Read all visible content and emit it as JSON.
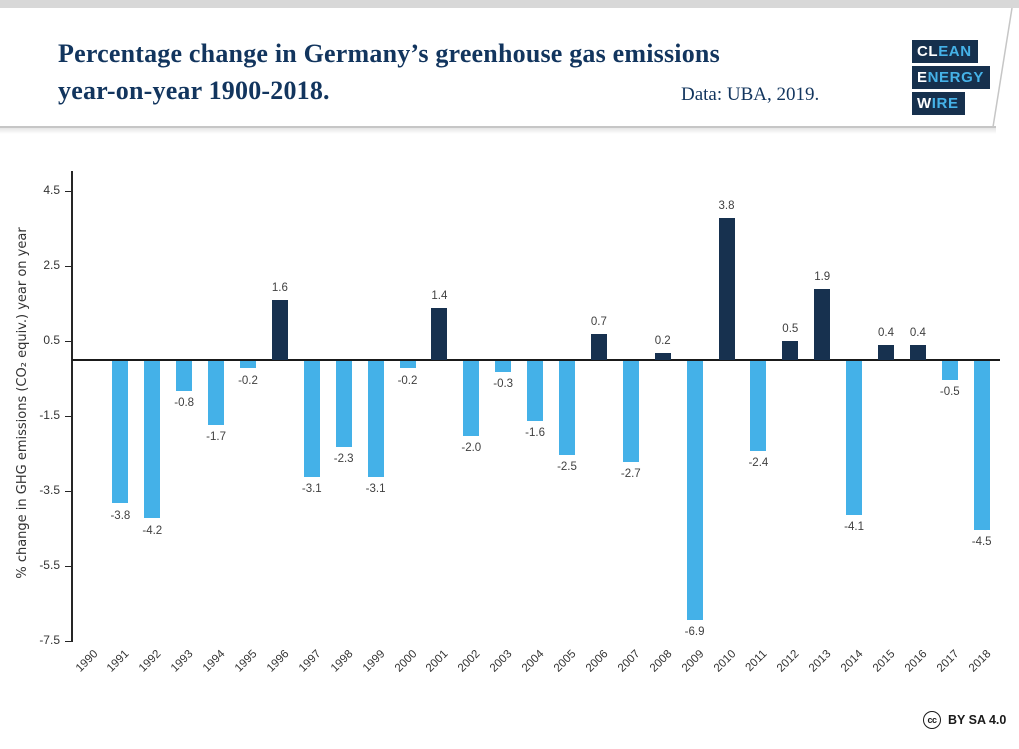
{
  "header": {
    "title_line1": "Percentage change in Germany’s greenhouse gas emissions",
    "title_line2": "year-on-year 1900-2018.",
    "source": "Data: UBA, 2019."
  },
  "logo": {
    "rows": [
      {
        "white": "CL",
        "blue": "EAN"
      },
      {
        "white": "E",
        "blue": "NERGY"
      },
      {
        "white": "W",
        "blue": "IRE"
      }
    ]
  },
  "footer": {
    "cc_icon": "cc",
    "license": "BY SA 4.0"
  },
  "chart_data": {
    "type": "bar",
    "title": "Percentage change in Germany’s greenhouse gas emissions year-on-year 1900-2018.",
    "subtitle": "Data: UBA, 2019.",
    "xlabel": "",
    "ylabel": "% change in GHG emissions (CO₂ equiv.) year on year",
    "categories": [
      "1990",
      "1991",
      "1992",
      "1993",
      "1994",
      "1995",
      "1996",
      "1997",
      "1998",
      "1999",
      "2000",
      "2001",
      "2002",
      "2003",
      "2004",
      "2005",
      "2006",
      "2007",
      "2008",
      "2009",
      "2010",
      "2011",
      "2012",
      "2013",
      "2014",
      "2015",
      "2016",
      "2017",
      "2018"
    ],
    "values": [
      null,
      -3.8,
      -4.2,
      -0.8,
      -1.7,
      -0.2,
      1.6,
      -3.1,
      -2.3,
      -3.1,
      -0.2,
      1.4,
      -2.0,
      -0.3,
      -1.6,
      -2.5,
      0.7,
      -2.7,
      0.2,
      -6.9,
      3.8,
      -2.4,
      0.5,
      1.9,
      -4.1,
      0.4,
      0.4,
      -0.5,
      -4.5
    ],
    "yticks": [
      4.5,
      2.5,
      0.5,
      -1.5,
      -3.5,
      -5.5,
      -7.5
    ],
    "ylim": [
      -7.5,
      5.2
    ],
    "grid": false,
    "legend": "none",
    "data_labels": true,
    "colors": {
      "positive_bar": "#17314f",
      "negative_bar": "#44b1e8",
      "axis": "#262626",
      "label_text": "#404040"
    }
  }
}
